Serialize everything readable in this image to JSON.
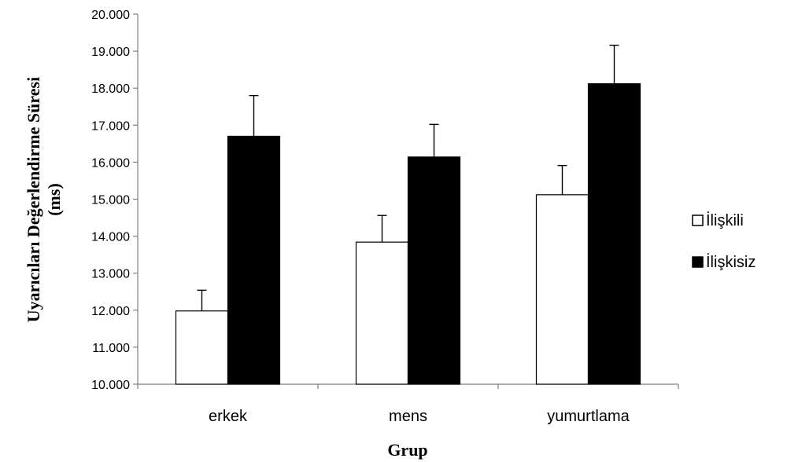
{
  "chart_data": {
    "type": "bar",
    "title": "",
    "xlabel": "Grup",
    "ylabel_lines": [
      "Uyarıcıları Değerlendirme Süresi",
      "(ms)"
    ],
    "categories": [
      "erkek",
      "mens",
      "yumurtlama"
    ],
    "ylim": [
      10000,
      20000
    ],
    "yticks": [
      10000,
      11000,
      12000,
      13000,
      14000,
      15000,
      16000,
      17000,
      18000,
      19000,
      20000
    ],
    "ytick_labels": [
      "10.000",
      "11.000",
      "12.000",
      "13.000",
      "14.000",
      "15.000",
      "16.000",
      "17.000",
      "18.000",
      "19.000",
      "20.000"
    ],
    "grid": false,
    "legend_position": "right",
    "series": [
      {
        "name": "İlişkili",
        "values": [
          11980,
          13840,
          15120
        ],
        "errors": [
          560,
          720,
          790
        ],
        "fill": "#ffffff",
        "stroke": "#000000"
      },
      {
        "name": "İlişkisiz",
        "values": [
          16700,
          16140,
          18120
        ],
        "errors": [
          1100,
          880,
          1040
        ],
        "fill": "#000000",
        "stroke": "#000000"
      }
    ]
  }
}
